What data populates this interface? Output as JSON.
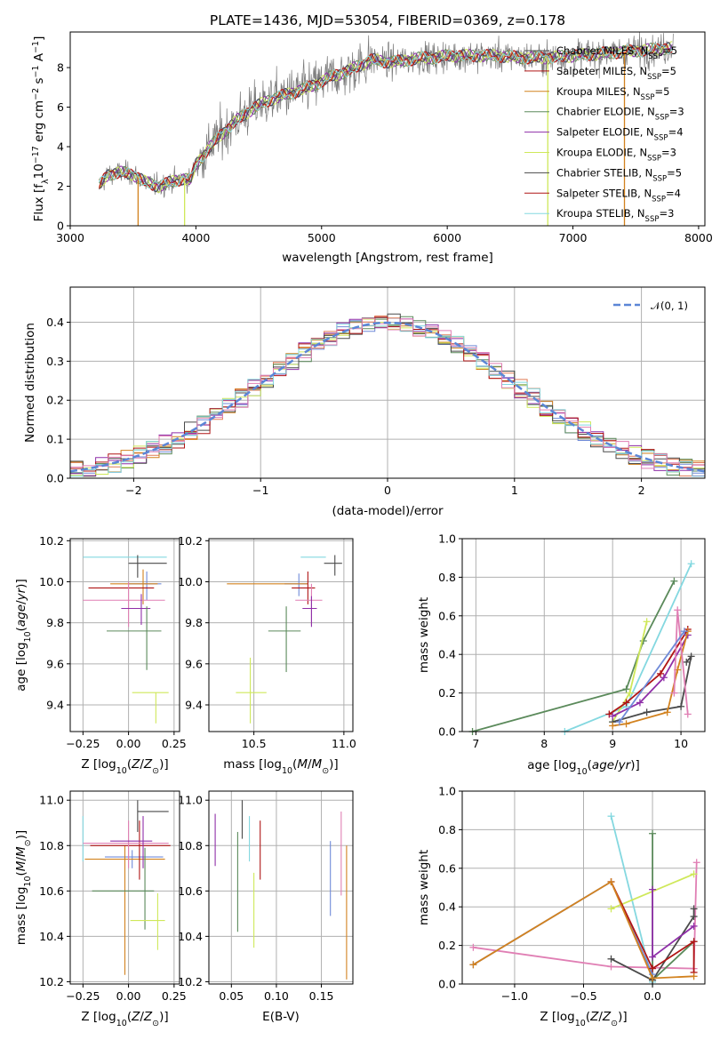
{
  "colors": {
    "chabrier_miles": "#6f8ad8",
    "salpeter_miles": "#e07b55",
    "kroupa_miles": "#d2821f",
    "chabrier_elodie": "#5b8a5b",
    "salpeter_elodie": "#8f2fa8",
    "kroupa_elodie": "#cfe85a",
    "chabrier_stelib": "#4a4a4a",
    "salpeter_stelib": "#b01515",
    "kroupa_stelib": "#84d8e0",
    "extra_pink": "#e07fb4",
    "data_gray": "#7a7a7a",
    "normal_curve": "#5b86d6"
  },
  "chart_data": [
    {
      "id": "spectrum",
      "type": "line",
      "title": "PLATE=1436, MJD=53054, FIBERID=0369, z=0.178",
      "xlabel": "wavelength [Angstrom, rest frame]",
      "ylabel": "Flux [f_λ 10^-17 erg cm^-2 s^-1 A^-1]",
      "xlim": [
        3000,
        8050
      ],
      "ylim": [
        0,
        9.8
      ],
      "xticks": [
        "3000",
        "4000",
        "5000",
        "6000",
        "7000",
        "8000"
      ],
      "yticks": [
        "0",
        "2",
        "4",
        "6",
        "8"
      ],
      "grid": false,
      "legend_position": "top-right",
      "legend": [
        {
          "base": "Chabrier MILES, N",
          "sub": "SSP",
          "tail": "=5",
          "color_key": "chabrier_stelib"
        },
        {
          "base": "Salpeter MILES, N",
          "sub": "SSP",
          "tail": "=5",
          "color_key": "salpeter_stelib"
        },
        {
          "base": "Kroupa MILES, N",
          "sub": "SSP",
          "tail": "=5",
          "color_key": "kroupa_miles"
        },
        {
          "base": "Chabrier ELODIE, N",
          "sub": "SSP",
          "tail": "=3",
          "color_key": "chabrier_elodie"
        },
        {
          "base": "Salpeter ELODIE, N",
          "sub": "SSP",
          "tail": "=4",
          "color_key": "salpeter_elodie"
        },
        {
          "base": "Kroupa ELODIE, N",
          "sub": "SSP",
          "tail": "=3",
          "color_key": "kroupa_elodie"
        },
        {
          "base": "Chabrier STELIB, N",
          "sub": "SSP",
          "tail": "=5",
          "color_key": "chabrier_stelib"
        },
        {
          "base": "Salpeter STELIB, N",
          "sub": "SSP",
          "tail": "=4",
          "color_key": "salpeter_stelib"
        },
        {
          "base": "Kroupa STELIB, N",
          "sub": "SSP",
          "tail": "=3",
          "color_key": "kroupa_stelib"
        }
      ],
      "continuum_model": {
        "wavelength": [
          3230,
          3300,
          3400,
          3500,
          3600,
          3700,
          3800,
          3900,
          3960,
          4000,
          4100,
          4200,
          4300,
          4400,
          4500,
          4600,
          4700,
          4800,
          4900,
          5000,
          5100,
          5200,
          5300,
          5400,
          5500,
          5600,
          5700,
          5800,
          5900,
          6000,
          6200,
          6400,
          6600,
          6800,
          7000,
          7200,
          7400,
          7600,
          7800
        ],
        "flux": [
          2.0,
          2.6,
          2.7,
          2.6,
          2.2,
          2.0,
          2.2,
          2.4,
          2.3,
          3.1,
          3.9,
          4.6,
          5.2,
          5.7,
          6.1,
          6.4,
          6.6,
          6.8,
          7.0,
          7.3,
          7.6,
          7.8,
          8.1,
          8.4,
          8.3,
          8.3,
          8.4,
          8.5,
          8.5,
          8.6,
          8.6,
          8.6,
          8.5,
          8.5,
          8.6,
          8.7,
          8.8,
          8.9,
          9.0
        ]
      },
      "drops": [
        {
          "wavelength": 3540,
          "color_key": "kroupa_miles"
        },
        {
          "wavelength": 3910,
          "color_key": "kroupa_elodie"
        },
        {
          "wavelength": 6800,
          "color_key": "kroupa_elodie"
        },
        {
          "wavelength": 7410,
          "color_key": "kroupa_miles"
        }
      ]
    },
    {
      "id": "residual_histogram",
      "type": "step",
      "xlabel": "(data-model)/error",
      "ylabel": "Normed distribution",
      "xlim": [
        -2.5,
        2.5
      ],
      "ylim": [
        0,
        0.49
      ],
      "xticks": [
        "-2",
        "-1",
        "0",
        "1",
        "2"
      ],
      "yticks": [
        "0.0",
        "0.1",
        "0.2",
        "0.3",
        "0.4"
      ],
      "grid": true,
      "legend_position": "top-right",
      "legend": [
        {
          "label": "𝒩(0, 1)",
          "style": "dashed",
          "color_key": "normal_curve"
        }
      ],
      "bin_width": 0.1,
      "n_bins": 50
    },
    {
      "id": "age_vs_Z",
      "type": "errorbar",
      "xlabel": "Z [log10(Z/Z⊙)]",
      "ylabel": "age [log10(age/yr)]",
      "xlim": [
        -0.32,
        0.28
      ],
      "ylim": [
        9.27,
        10.21
      ],
      "xticks": [
        "-0.25",
        "0.00",
        "0.25"
      ],
      "yticks": [
        "9.4",
        "9.6",
        "9.8",
        "10.0",
        "10.2"
      ],
      "grid": true,
      "points": [
        {
          "x": -0.02,
          "xerr": [
            0.23,
            0.23
          ],
          "y": 10.12,
          "yerr": [
            0.0,
            0.0
          ],
          "color_key": "kroupa_stelib"
        },
        {
          "x": 0.05,
          "xerr": [
            0.05,
            0.16
          ],
          "y": 10.09,
          "yerr": [
            0.07,
            0.04
          ],
          "color_key": "chabrier_stelib"
        },
        {
          "x": 0.1,
          "xerr": [
            0.1,
            0.08
          ],
          "y": 9.99,
          "yerr": [
            0.08,
            0.06
          ],
          "color_key": "chabrier_miles"
        },
        {
          "x": 0.08,
          "xerr": [
            0.18,
            0.08
          ],
          "y": 9.99,
          "yerr": [
            0.1,
            0.07
          ],
          "color_key": "kroupa_miles"
        },
        {
          "x": 0.05,
          "xerr": [
            0.27,
            0.09
          ],
          "y": 9.97,
          "yerr": [
            0.0,
            0.0
          ],
          "color_key": "salpeter_stelib"
        },
        {
          "x": 0.0,
          "xerr": [
            0.25,
            0.2
          ],
          "y": 9.91,
          "yerr": [
            0.13,
            0.09
          ],
          "color_key": "extra_pink"
        },
        {
          "x": 0.07,
          "xerr": [
            0.11,
            0.05
          ],
          "y": 9.87,
          "yerr": [
            0.08,
            0.07
          ],
          "color_key": "salpeter_elodie"
        },
        {
          "x": 0.1,
          "xerr": [
            0.22,
            0.08
          ],
          "y": 9.76,
          "yerr": [
            0.19,
            0.12
          ],
          "color_key": "chabrier_elodie"
        },
        {
          "x": 0.15,
          "xerr": [
            0.13,
            0.07
          ],
          "y": 9.46,
          "yerr": [
            0.15,
            0.0
          ],
          "color_key": "kroupa_elodie"
        }
      ]
    },
    {
      "id": "age_vs_mass",
      "type": "errorbar",
      "xlabel": "mass [log10(M/M⊙)]",
      "ylabel": "",
      "xlim": [
        10.25,
        11.05
      ],
      "ylim": [
        9.27,
        10.21
      ],
      "xticks": [
        "10.5",
        "11.0"
      ],
      "yticks": [
        "9.4",
        "9.6",
        "9.8",
        "10.0",
        "10.2"
      ],
      "grid": true,
      "points": [
        {
          "x": 10.84,
          "xerr": [
            0.08,
            0.06
          ],
          "y": 10.12,
          "yerr": [
            0.0,
            0.0
          ],
          "color_key": "kroupa_stelib"
        },
        {
          "x": 10.95,
          "xerr": [
            0.06,
            0.04
          ],
          "y": 10.09,
          "yerr": [
            0.06,
            0.04
          ],
          "color_key": "chabrier_stelib"
        },
        {
          "x": 10.75,
          "xerr": [
            0.08,
            0.05
          ],
          "y": 9.99,
          "yerr": [
            0.06,
            0.05
          ],
          "color_key": "chabrier_miles"
        },
        {
          "x": 10.75,
          "xerr": [
            0.4,
            0.05
          ],
          "y": 9.99,
          "yerr": [
            0.0,
            0.0
          ],
          "color_key": "kroupa_miles"
        },
        {
          "x": 10.8,
          "xerr": [
            0.09,
            0.04
          ],
          "y": 9.97,
          "yerr": [
            0.08,
            0.08
          ],
          "color_key": "salpeter_stelib"
        },
        {
          "x": 10.82,
          "xerr": [
            0.09,
            0.06
          ],
          "y": 9.91,
          "yerr": [
            0.12,
            0.08
          ],
          "color_key": "extra_pink"
        },
        {
          "x": 10.82,
          "xerr": [
            0.05,
            0.03
          ],
          "y": 9.87,
          "yerr": [
            0.09,
            0.06
          ],
          "color_key": "salpeter_elodie"
        },
        {
          "x": 10.68,
          "xerr": [
            0.1,
            0.08
          ],
          "y": 9.76,
          "yerr": [
            0.2,
            0.12
          ],
          "color_key": "chabrier_elodie"
        },
        {
          "x": 10.48,
          "xerr": [
            0.08,
            0.09
          ],
          "y": 9.46,
          "yerr": [
            0.15,
            0.17
          ],
          "color_key": "kroupa_elodie"
        }
      ]
    },
    {
      "id": "weight_vs_age",
      "type": "line",
      "xlabel": "age [log10(age/yr)]",
      "ylabel": "mass weight",
      "xlim": [
        6.8,
        10.35
      ],
      "ylim": [
        0,
        1.0
      ],
      "xticks": [
        "7",
        "8",
        "9",
        "10"
      ],
      "yticks": [
        "0.0",
        "0.2",
        "0.4",
        "0.6",
        "0.8",
        "1.0"
      ],
      "grid": true,
      "series": [
        {
          "color_key": "chabrier_elodie",
          "x": [
            6.95,
            9.2,
            9.45,
            9.9
          ],
          "y": [
            0.0,
            0.22,
            0.47,
            0.78
          ]
        },
        {
          "color_key": "kroupa_stelib",
          "x": [
            8.3,
            9.2,
            10.15
          ],
          "y": [
            0.0,
            0.13,
            0.87
          ]
        },
        {
          "color_key": "kroupa_elodie",
          "x": [
            9.0,
            9.25,
            9.5
          ],
          "y": [
            0.05,
            0.2,
            0.57
          ]
        },
        {
          "color_key": "chabrier_stelib",
          "x": [
            9.0,
            9.5,
            10.0,
            10.15,
            10.08
          ],
          "y": [
            0.05,
            0.1,
            0.13,
            0.39,
            0.36
          ]
        },
        {
          "color_key": "salpeter_stelib",
          "x": [
            8.95,
            9.2,
            9.7,
            10.1
          ],
          "y": [
            0.09,
            0.15,
            0.3,
            0.53
          ]
        },
        {
          "color_key": "salpeter_elodie",
          "x": [
            9.0,
            9.4,
            9.75,
            10.1
          ],
          "y": [
            0.08,
            0.15,
            0.28,
            0.5
          ]
        },
        {
          "color_key": "kroupa_miles",
          "x": [
            9.0,
            9.2,
            9.8,
            9.95,
            10.1
          ],
          "y": [
            0.03,
            0.04,
            0.1,
            0.32,
            0.52
          ]
        },
        {
          "color_key": "extra_pink",
          "x": [
            9.9,
            9.95,
            10.1
          ],
          "y": [
            0.2,
            0.63,
            0.09
          ]
        },
        {
          "color_key": "chabrier_miles",
          "x": [
            9.1,
            10.05
          ],
          "y": [
            0.05,
            0.52
          ]
        }
      ]
    },
    {
      "id": "mass_vs_Z",
      "type": "errorbar",
      "xlabel": "Z [log10(Z/Z⊙)]",
      "ylabel": "mass [log10(M/M⊙)]",
      "xlim": [
        -0.32,
        0.28
      ],
      "ylim": [
        10.19,
        11.04
      ],
      "xticks": [
        "-0.25",
        "0.00",
        "0.25"
      ],
      "yticks": [
        "10.2",
        "10.4",
        "10.6",
        "10.8",
        "11.0"
      ],
      "grid": true,
      "points": [
        {
          "x": -0.25,
          "xerr": [
            0.0,
            0.0
          ],
          "y": 10.8,
          "yerr": [
            0.07,
            0.13
          ],
          "color_key": "kroupa_stelib"
        },
        {
          "x": 0.05,
          "xerr": [
            0.0,
            0.17
          ],
          "y": 10.95,
          "yerr": [
            0.09,
            0.05
          ],
          "color_key": "chabrier_stelib"
        },
        {
          "x": 0.02,
          "xerr": [
            0.15,
            0.17
          ],
          "y": 10.75,
          "yerr": [
            0.05,
            0.03
          ],
          "color_key": "chabrier_miles"
        },
        {
          "x": -0.02,
          "xerr": [
            0.22,
            0.22
          ],
          "y": 10.74,
          "yerr": [
            0.51,
            0.06
          ],
          "color_key": "kroupa_miles"
        },
        {
          "x": 0.06,
          "xerr": [
            0.27,
            0.17
          ],
          "y": 10.8,
          "yerr": [
            0.15,
            0.11
          ],
          "color_key": "salpeter_stelib"
        },
        {
          "x": 0.0,
          "xerr": [
            0.25,
            0.22
          ],
          "y": 10.81,
          "yerr": [
            0.11,
            0.1
          ],
          "color_key": "extra_pink"
        },
        {
          "x": 0.08,
          "xerr": [
            0.18,
            0.05
          ],
          "y": 10.82,
          "yerr": [
            0.12,
            0.11
          ],
          "color_key": "salpeter_elodie"
        },
        {
          "x": 0.09,
          "xerr": [
            0.29,
            0.05
          ],
          "y": 10.6,
          "yerr": [
            0.17,
            0.19
          ],
          "color_key": "chabrier_elodie"
        },
        {
          "x": 0.16,
          "xerr": [
            0.15,
            0.04
          ],
          "y": 10.47,
          "yerr": [
            0.13,
            0.12
          ],
          "color_key": "kroupa_elodie"
        }
      ]
    },
    {
      "id": "mass_vs_ebv",
      "type": "errorbar",
      "xlabel": "E(B-V)",
      "ylabel": "",
      "xlim": [
        0.025,
        0.185
      ],
      "ylim": [
        10.19,
        11.04
      ],
      "xticks": [
        "0.05",
        "0.10",
        "0.15"
      ],
      "yticks": [
        "10.2",
        "10.4",
        "10.6",
        "10.8",
        "11.0"
      ],
      "grid": true,
      "points": [
        {
          "x": 0.032,
          "y": 10.83,
          "yerr": [
            0.12,
            0.11
          ],
          "color_key": "salpeter_elodie"
        },
        {
          "x": 0.057,
          "y": 10.65,
          "yerr": [
            0.23,
            0.21
          ],
          "color_key": "chabrier_elodie"
        },
        {
          "x": 0.062,
          "y": 10.91,
          "yerr": [
            0.08,
            0.09
          ],
          "color_key": "chabrier_stelib"
        },
        {
          "x": 0.07,
          "y": 10.83,
          "yerr": [
            0.1,
            0.1
          ],
          "color_key": "kroupa_stelib"
        },
        {
          "x": 0.075,
          "y": 10.53,
          "yerr": [
            0.18,
            0.15
          ],
          "color_key": "kroupa_elodie"
        },
        {
          "x": 0.082,
          "y": 10.78,
          "yerr": [
            0.13,
            0.13
          ],
          "color_key": "salpeter_stelib"
        },
        {
          "x": 0.16,
          "y": 10.67,
          "yerr": [
            0.18,
            0.15
          ],
          "color_key": "chabrier_miles"
        },
        {
          "x": 0.172,
          "y": 10.79,
          "yerr": [
            0.21,
            0.16
          ],
          "color_key": "extra_pink"
        },
        {
          "x": 0.178,
          "y": 10.45,
          "yerr": [
            0.24,
            0.35
          ],
          "color_key": "kroupa_miles"
        }
      ]
    },
    {
      "id": "weight_vs_Z",
      "type": "line",
      "xlabel": "Z [log10(Z/Z⊙)]",
      "ylabel": "mass weight",
      "xlim": [
        -1.38,
        0.38
      ],
      "ylim": [
        0,
        1.0
      ],
      "xticks": [
        "-1.0",
        "-0.5",
        "0.0"
      ],
      "yticks": [
        "0.0",
        "0.2",
        "0.4",
        "0.6",
        "0.8",
        "1.0"
      ],
      "grid": true,
      "series": [
        {
          "color_key": "extra_pink",
          "x": [
            -1.3,
            -0.3,
            0.3,
            0.32
          ],
          "y": [
            0.19,
            0.09,
            0.08,
            0.63
          ]
        },
        {
          "color_key": "kroupa_stelib",
          "x": [
            -0.3,
            0.0
          ],
          "y": [
            0.87,
            0.01
          ]
        },
        {
          "color_key": "kroupa_elodie",
          "x": [
            -0.3,
            0.3
          ],
          "y": [
            0.39,
            0.57
          ]
        },
        {
          "color_key": "chabrier_elodie",
          "x": [
            0.0,
            0.0,
            0.3
          ],
          "y": [
            0.78,
            0.02,
            0.22
          ]
        },
        {
          "color_key": "chabrier_stelib",
          "x": [
            -0.3,
            0.0,
            0.3,
            0.3
          ],
          "y": [
            0.13,
            0.02,
            0.35,
            0.39
          ]
        },
        {
          "color_key": "salpeter_elodie",
          "x": [
            0.0,
            0.0,
            0.3
          ],
          "y": [
            0.49,
            0.14,
            0.3
          ]
        },
        {
          "color_key": "chabrier_miles",
          "x": [
            -1.3,
            -0.3,
            0.0
          ],
          "y": [
            0.1,
            0.53,
            0.05
          ]
        },
        {
          "color_key": "salpeter_stelib",
          "x": [
            -0.3,
            0.0,
            0.3,
            0.3
          ],
          "y": [
            0.53,
            0.08,
            0.22,
            0.06
          ]
        },
        {
          "color_key": "kroupa_miles",
          "x": [
            -1.3,
            -0.3,
            0.0,
            0.3
          ],
          "y": [
            0.1,
            0.53,
            0.03,
            0.04
          ]
        }
      ]
    }
  ]
}
